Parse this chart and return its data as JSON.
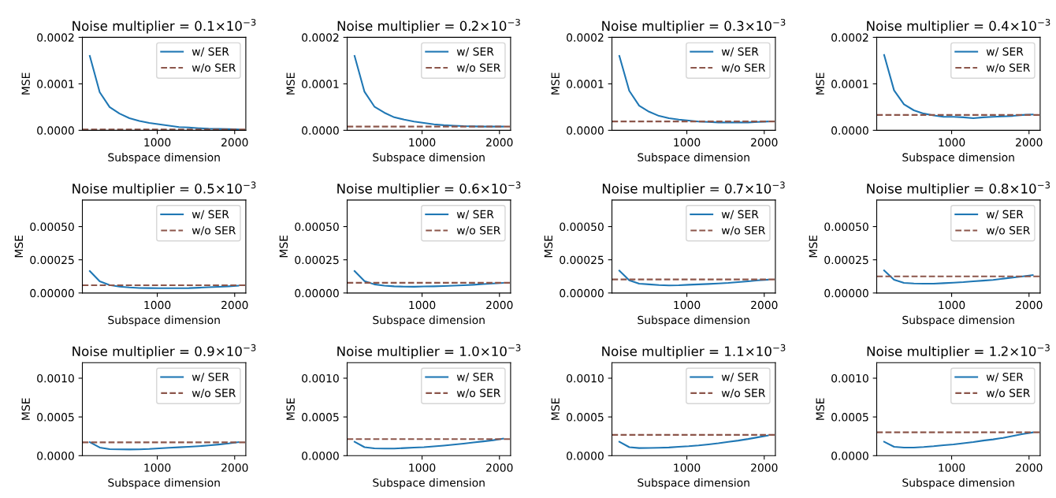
{
  "chart_data": [
    {
      "type": "line",
      "title": "Noise multiplier = 0.1×10$^{−3}$",
      "xlabel": "Subspace dimension",
      "ylabel": "MSE",
      "legend": "top right",
      "xlim": [
        32,
        2144
      ],
      "xticks": [
        1000,
        2000
      ],
      "ylim": [
        0,
        0.0002
      ],
      "yticks": [
        {
          "value": 0,
          "label": "0.0000"
        },
        {
          "value": 0.0001,
          "label": "0.0001"
        },
        {
          "value": 0.0002,
          "label": "0.0002"
        }
      ],
      "x": [
        128,
        256,
        384,
        512,
        640,
        768,
        896,
        1024,
        1152,
        1280,
        1408,
        1536,
        1664,
        1792,
        1920,
        2048
      ],
      "series": [
        {
          "name": "w/ SER",
          "color": "#1f77b4",
          "values": [
            0.00016,
            8.2e-05,
            5e-05,
            3.6e-05,
            2.6e-05,
            2e-05,
            1.6e-05,
            1.3e-05,
            1e-05,
            7e-06,
            6e-06,
            4.5e-06,
            3.5e-06,
            3e-06,
            2.5e-06,
            2e-06
          ]
        }
      ],
      "ref_lines": [
        {
          "axis": "y",
          "value": 2e-06,
          "label": "w/o SER",
          "color": "#8c564b",
          "line_style": "dashed"
        }
      ]
    },
    {
      "type": "line",
      "title": "Noise multiplier = 0.2×10$^{−3}$",
      "xlabel": "Subspace dimension",
      "ylabel": "MSE",
      "legend": "top right",
      "xlim": [
        32,
        2144
      ],
      "xticks": [
        1000,
        2000
      ],
      "ylim": [
        0,
        0.0002
      ],
      "yticks": [
        {
          "value": 0,
          "label": "0.0000"
        },
        {
          "value": 0.0001,
          "label": "0.0001"
        },
        {
          "value": 0.0002,
          "label": "0.0002"
        }
      ],
      "x": [
        128,
        256,
        384,
        512,
        640,
        768,
        896,
        1024,
        1152,
        1280,
        1408,
        1536,
        1664,
        1792,
        1920,
        2048
      ],
      "series": [
        {
          "name": "w/ SER",
          "color": "#1f77b4",
          "values": [
            0.00016,
            8.3e-05,
            5.1e-05,
            3.8e-05,
            2.8e-05,
            2.3e-05,
            1.9e-05,
            1.6e-05,
            1.3e-05,
            1.1e-05,
            1e-05,
            9e-06,
            8.5e-06,
            8e-06,
            8e-06,
            8e-06
          ]
        }
      ],
      "ref_lines": [
        {
          "axis": "y",
          "value": 8e-06,
          "label": "w/o SER",
          "color": "#8c564b",
          "line_style": "dashed"
        }
      ]
    },
    {
      "type": "line",
      "title": "Noise multiplier = 0.3×10$^{−3}$",
      "xlabel": "Subspace dimension",
      "ylabel": "MSE",
      "legend": "top right",
      "xlim": [
        32,
        2144
      ],
      "xticks": [
        1000,
        2000
      ],
      "ylim": [
        0,
        0.0002
      ],
      "yticks": [
        {
          "value": 0,
          "label": "0.0000"
        },
        {
          "value": 0.0001,
          "label": "0.0001"
        },
        {
          "value": 0.0002,
          "label": "0.0002"
        }
      ],
      "x": [
        128,
        256,
        384,
        512,
        640,
        768,
        896,
        1024,
        1152,
        1280,
        1408,
        1536,
        1664,
        1792,
        1920,
        2048
      ],
      "series": [
        {
          "name": "w/ SER",
          "color": "#1f77b4",
          "values": [
            0.00016,
            8.5e-05,
            5.3e-05,
            4e-05,
            3.1e-05,
            2.6e-05,
            2.3e-05,
            2.1e-05,
            1.9e-05,
            1.8e-05,
            1.7e-05,
            1.7e-05,
            1.7e-05,
            1.7e-05,
            1.8e-05,
            1.9e-05
          ]
        }
      ],
      "ref_lines": [
        {
          "axis": "y",
          "value": 1.9e-05,
          "label": "w/o SER",
          "color": "#8c564b",
          "line_style": "dashed"
        }
      ]
    },
    {
      "type": "line",
      "title": "Noise multiplier = 0.4×10$^{−3}$",
      "xlabel": "Subspace dimension",
      "ylabel": "MSE",
      "legend": "top right",
      "xlim": [
        32,
        2144
      ],
      "xticks": [
        1000,
        2000
      ],
      "ylim": [
        0,
        0.0002
      ],
      "yticks": [
        {
          "value": 0,
          "label": "0.0000"
        },
        {
          "value": 0.0001,
          "label": "0.0001"
        },
        {
          "value": 0.0002,
          "label": "0.0002"
        }
      ],
      "x": [
        128,
        256,
        384,
        512,
        640,
        768,
        896,
        1024,
        1152,
        1280,
        1408,
        1536,
        1664,
        1792,
        1920,
        2048
      ],
      "series": [
        {
          "name": "w/ SER",
          "color": "#1f77b4",
          "values": [
            0.000162,
            8.6e-05,
            5.6e-05,
            4.3e-05,
            3.6e-05,
            3.2e-05,
            2.9e-05,
            2.9e-05,
            2.8e-05,
            2.6e-05,
            2.8e-05,
            2.9e-05,
            3e-05,
            3.1e-05,
            3.3e-05,
            3.4e-05
          ]
        }
      ],
      "ref_lines": [
        {
          "axis": "y",
          "value": 3.3e-05,
          "label": "w/o SER",
          "color": "#8c564b",
          "line_style": "dashed"
        }
      ]
    },
    {
      "type": "line",
      "title": "Noise multiplier = 0.5×10$^{−3}$",
      "xlabel": "Subspace dimension",
      "ylabel": "MSE",
      "legend": "top right",
      "xlim": [
        32,
        2144
      ],
      "xticks": [
        1000,
        2000
      ],
      "ylim": [
        0,
        0.0007
      ],
      "yticks": [
        {
          "value": 0,
          "label": "0.00000"
        },
        {
          "value": 0.00025,
          "label": "0.00025"
        },
        {
          "value": 0.0005,
          "label": "0.00050"
        }
      ],
      "x": [
        128,
        256,
        384,
        512,
        640,
        768,
        896,
        1024,
        1152,
        1280,
        1408,
        1536,
        1664,
        1792,
        1920,
        2048
      ],
      "series": [
        {
          "name": "w/ SER",
          "color": "#1f77b4",
          "values": [
            0.000165,
            8.8e-05,
            6e-05,
            4.8e-05,
            4.2e-05,
            3.8e-05,
            3.7e-05,
            3.6e-05,
            3.6e-05,
            3.6e-05,
            3.7e-05,
            4e-05,
            4.3e-05,
            4.6e-05,
            5e-05,
            5.5e-05
          ]
        }
      ],
      "ref_lines": [
        {
          "axis": "y",
          "value": 5.8e-05,
          "label": "w/o SER",
          "color": "#8c564b",
          "line_style": "dashed"
        }
      ]
    },
    {
      "type": "line",
      "title": "Noise multiplier = 0.6×10$^{−3}$",
      "xlabel": "Subspace dimension",
      "ylabel": "MSE",
      "legend": "top right",
      "xlim": [
        32,
        2144
      ],
      "xticks": [
        1000,
        2000
      ],
      "ylim": [
        0,
        0.0007
      ],
      "yticks": [
        {
          "value": 0,
          "label": "0.00000"
        },
        {
          "value": 0.00025,
          "label": "0.00025"
        },
        {
          "value": 0.0005,
          "label": "0.00050"
        }
      ],
      "x": [
        128,
        256,
        384,
        512,
        640,
        768,
        896,
        1024,
        1152,
        1280,
        1408,
        1536,
        1664,
        1792,
        1920,
        2048
      ],
      "series": [
        {
          "name": "w/ SER",
          "color": "#1f77b4",
          "values": [
            0.000165,
            9e-05,
            6.5e-05,
            5.5e-05,
            5e-05,
            4.8e-05,
            4.7e-05,
            4.9e-05,
            5e-05,
            5.2e-05,
            5.5e-05,
            5.8e-05,
            6.2e-05,
            6.7e-05,
            7.2e-05,
            7.6e-05
          ]
        }
      ],
      "ref_lines": [
        {
          "axis": "y",
          "value": 7.7e-05,
          "label": "w/o SER",
          "color": "#8c564b",
          "line_style": "dashed"
        }
      ]
    },
    {
      "type": "line",
      "title": "Noise multiplier = 0.7×10$^{−3}$",
      "xlabel": "Subspace dimension",
      "ylabel": "MSE",
      "legend": "top right",
      "xlim": [
        32,
        2144
      ],
      "xticks": [
        1000,
        2000
      ],
      "ylim": [
        0,
        0.0007
      ],
      "yticks": [
        {
          "value": 0,
          "label": "0.00000"
        },
        {
          "value": 0.00025,
          "label": "0.00025"
        },
        {
          "value": 0.0005,
          "label": "0.00050"
        }
      ],
      "x": [
        128,
        256,
        384,
        512,
        640,
        768,
        896,
        1024,
        1152,
        1280,
        1408,
        1536,
        1664,
        1792,
        1920,
        2048
      ],
      "series": [
        {
          "name": "w/ SER",
          "color": "#1f77b4",
          "values": [
            0.000168,
            9.5e-05,
            7e-05,
            6.5e-05,
            6e-05,
            5.7e-05,
            5.8e-05,
            6.2e-05,
            6.5e-05,
            6.8e-05,
            7.2e-05,
            7.6e-05,
            8.2e-05,
            8.8e-05,
            9.5e-05,
            0.0001
          ]
        }
      ],
      "ref_lines": [
        {
          "axis": "y",
          "value": 0.000102,
          "label": "w/o SER",
          "color": "#8c564b",
          "line_style": "dashed"
        }
      ]
    },
    {
      "type": "line",
      "title": "Noise multiplier = 0.8×10$^{−3}$",
      "xlabel": "Subspace dimension",
      "ylabel": "MSE",
      "legend": "top right",
      "xlim": [
        32,
        2144
      ],
      "xticks": [
        1000,
        2000
      ],
      "ylim": [
        0,
        0.0007
      ],
      "yticks": [
        {
          "value": 0,
          "label": "0.00000"
        },
        {
          "value": 0.00025,
          "label": "0.00025"
        },
        {
          "value": 0.0005,
          "label": "0.00050"
        }
      ],
      "x": [
        128,
        256,
        384,
        512,
        640,
        768,
        896,
        1024,
        1152,
        1280,
        1408,
        1536,
        1664,
        1792,
        1920,
        2048
      ],
      "series": [
        {
          "name": "w/ SER",
          "color": "#1f77b4",
          "values": [
            0.00017,
            0.0001,
            7.6e-05,
            7.2e-05,
            7e-05,
            7e-05,
            7.4e-05,
            7.8e-05,
            8.2e-05,
            8.8e-05,
            9.3e-05,
            9.8e-05,
            0.000108,
            0.000116,
            0.000125,
            0.000135
          ]
        }
      ],
      "ref_lines": [
        {
          "axis": "y",
          "value": 0.000125,
          "label": "w/o SER",
          "color": "#8c564b",
          "line_style": "dashed"
        }
      ]
    },
    {
      "type": "line",
      "title": "Noise multiplier = 0.9×10$^{−3}$",
      "xlabel": "Subspace dimension",
      "ylabel": "MSE",
      "legend": "top right",
      "xlim": [
        32,
        2144
      ],
      "xticks": [
        1000,
        2000
      ],
      "ylim": [
        0,
        0.0012
      ],
      "yticks": [
        {
          "value": 0,
          "label": "0.0000"
        },
        {
          "value": 0.0005,
          "label": "0.0005"
        },
        {
          "value": 0.001,
          "label": "0.0010"
        }
      ],
      "x": [
        128,
        256,
        384,
        512,
        640,
        768,
        896,
        1024,
        1152,
        1280,
        1408,
        1536,
        1664,
        1792,
        1920,
        2048
      ],
      "series": [
        {
          "name": "w/ SER",
          "color": "#1f77b4",
          "values": [
            0.000175,
            0.000105,
            8.5e-05,
            8.2e-05,
            8e-05,
            8.2e-05,
            8.6e-05,
            9.5e-05,
            0.000102,
            0.000108,
            0.000114,
            0.000122,
            0.000132,
            0.000144,
            0.000158,
            0.000175
          ]
        }
      ],
      "ref_lines": [
        {
          "axis": "y",
          "value": 0.000172,
          "label": "w/o SER",
          "color": "#8c564b",
          "line_style": "dashed"
        }
      ]
    },
    {
      "type": "line",
      "title": "Noise multiplier = 1.0×10$^{−3}$",
      "xlabel": "Subspace dimension",
      "ylabel": "MSE",
      "legend": "top right",
      "xlim": [
        32,
        2144
      ],
      "xticks": [
        1000,
        2000
      ],
      "ylim": [
        0,
        0.0012
      ],
      "yticks": [
        {
          "value": 0,
          "label": "0.0000"
        },
        {
          "value": 0.0005,
          "label": "0.0005"
        },
        {
          "value": 0.001,
          "label": "0.0010"
        }
      ],
      "x": [
        128,
        256,
        384,
        512,
        640,
        768,
        896,
        1024,
        1152,
        1280,
        1408,
        1536,
        1664,
        1792,
        1920,
        2048
      ],
      "series": [
        {
          "name": "w/ SER",
          "color": "#1f77b4",
          "values": [
            0.00018,
            0.00011,
            9.5e-05,
            9.2e-05,
            9.2e-05,
            9.8e-05,
            0.000105,
            0.00011,
            0.00012,
            0.00013,
            0.000142,
            0.000155,
            0.00017,
            0.000185,
            0.0002,
            0.00022
          ]
        }
      ],
      "ref_lines": [
        {
          "axis": "y",
          "value": 0.000214,
          "label": "w/o SER",
          "color": "#8c564b",
          "line_style": "dashed"
        }
      ]
    },
    {
      "type": "line",
      "title": "Noise multiplier = 1.1×10$^{−3}$",
      "xlabel": "Subspace dimension",
      "ylabel": "MSE",
      "legend": "top right",
      "xlim": [
        32,
        2144
      ],
      "xticks": [
        1000,
        2000
      ],
      "ylim": [
        0,
        0.0012
      ],
      "yticks": [
        {
          "value": 0,
          "label": "0.0000"
        },
        {
          "value": 0.0005,
          "label": "0.0005"
        },
        {
          "value": 0.001,
          "label": "0.0010"
        }
      ],
      "x": [
        128,
        256,
        384,
        512,
        640,
        768,
        896,
        1024,
        1152,
        1280,
        1408,
        1536,
        1664,
        1792,
        1920,
        2048
      ],
      "series": [
        {
          "name": "w/ SER",
          "color": "#1f77b4",
          "values": [
            0.00018,
            0.00011,
            9.8e-05,
            0.0001,
            0.000102,
            0.000106,
            0.000115,
            0.000122,
            0.000132,
            0.000145,
            0.00016,
            0.000178,
            0.000195,
            0.000215,
            0.000238,
            0.00026
          ]
        }
      ],
      "ref_lines": [
        {
          "axis": "y",
          "value": 0.000269,
          "label": "w/o SER",
          "color": "#8c564b",
          "line_style": "dashed"
        }
      ]
    },
    {
      "type": "line",
      "title": "Noise multiplier = 1.2×10$^{−3}$",
      "xlabel": "Subspace dimension",
      "ylabel": "MSE",
      "legend": "top right",
      "xlim": [
        32,
        2144
      ],
      "xticks": [
        1000,
        2000
      ],
      "ylim": [
        0,
        0.0012
      ],
      "yticks": [
        {
          "value": 0,
          "label": "0.0000"
        },
        {
          "value": 0.0005,
          "label": "0.0005"
        },
        {
          "value": 0.001,
          "label": "0.0010"
        }
      ],
      "x": [
        128,
        256,
        384,
        512,
        640,
        768,
        896,
        1024,
        1152,
        1280,
        1408,
        1536,
        1664,
        1792,
        1920,
        2048
      ],
      "series": [
        {
          "name": "w/ SER",
          "color": "#1f77b4",
          "values": [
            0.00018,
            0.000115,
            0.000105,
            0.000105,
            0.000112,
            0.000122,
            0.000135,
            0.000145,
            0.00016,
            0.000175,
            0.000195,
            0.00021,
            0.00023,
            0.000255,
            0.00028,
            0.0003
          ]
        }
      ],
      "ref_lines": [
        {
          "axis": "y",
          "value": 0.000302,
          "label": "w/o SER",
          "color": "#8c564b",
          "line_style": "dashed"
        }
      ]
    }
  ]
}
